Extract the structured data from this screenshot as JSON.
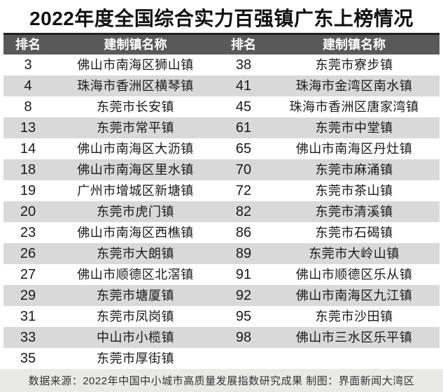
{
  "title": "2022年度全国综合实力百强镇广东上榜情况",
  "table": {
    "headers": [
      "排名",
      "建制镇名称",
      "排名",
      "建制镇名称"
    ],
    "left_rows": [
      {
        "rank": "3",
        "town": "佛山市南海区狮山镇"
      },
      {
        "rank": "4",
        "town": "珠海市香洲区横琴镇"
      },
      {
        "rank": "8",
        "town": "东莞市长安镇"
      },
      {
        "rank": "13",
        "town": "东莞市常平镇"
      },
      {
        "rank": "14",
        "town": "佛山市南海区大沥镇"
      },
      {
        "rank": "18",
        "town": "佛山市南海区里水镇"
      },
      {
        "rank": "19",
        "town": "广州市增城区新塘镇"
      },
      {
        "rank": "20",
        "town": "东莞市虎门镇"
      },
      {
        "rank": "23",
        "town": "佛山市南海区西樵镇"
      },
      {
        "rank": "26",
        "town": "东莞市大朗镇"
      },
      {
        "rank": "27",
        "town": "佛山市顺德区北滘镇"
      },
      {
        "rank": "29",
        "town": "东莞市塘厦镇"
      },
      {
        "rank": "31",
        "town": "东莞市凤岗镇"
      },
      {
        "rank": "33",
        "town": "中山市小榄镇"
      },
      {
        "rank": "35",
        "town": "东莞市厚街镇"
      }
    ],
    "right_rows": [
      {
        "rank": "38",
        "town": "东莞市寮步镇"
      },
      {
        "rank": "41",
        "town": "珠海市金湾区南水镇"
      },
      {
        "rank": "45",
        "town": "珠海市香洲区唐家湾镇"
      },
      {
        "rank": "61",
        "town": "东莞市中堂镇"
      },
      {
        "rank": "65",
        "town": "佛山市南海区丹灶镇"
      },
      {
        "rank": "70",
        "town": "东莞市麻涌镇"
      },
      {
        "rank": "72",
        "town": "东莞市茶山镇"
      },
      {
        "rank": "82",
        "town": "东莞市清溪镇"
      },
      {
        "rank": "86",
        "town": "东莞市石碣镇"
      },
      {
        "rank": "89",
        "town": "东莞市大岭山镇"
      },
      {
        "rank": "91",
        "town": "佛山市顺德区乐从镇"
      },
      {
        "rank": "92",
        "town": "佛山市南海区九江镇"
      },
      {
        "rank": "95",
        "town": "东莞市沙田镇"
      },
      {
        "rank": "98",
        "town": "佛山市三水区乐平镇"
      },
      {
        "rank": "",
        "town": ""
      }
    ]
  },
  "footer": {
    "text": "数据来源：2022年中国中小城市高质量发展指数研究成果 制图：界面新闻大湾区"
  },
  "colors": {
    "header_bg": "#595959",
    "stripe_bg": "#d9d9d9",
    "top_rule": "#1f1f1f",
    "footer_bg": "#e9e9e8",
    "title_text": "#111111",
    "body_text": "#1a1a1a"
  },
  "chart_data": {
    "type": "table",
    "title": "2022年度全国综合实力百强镇广东上榜情况",
    "columns": [
      "排名",
      "建制镇名称"
    ],
    "rows": [
      [
        3,
        "佛山市南海区狮山镇"
      ],
      [
        4,
        "珠海市香洲区横琴镇"
      ],
      [
        8,
        "东莞市长安镇"
      ],
      [
        13,
        "东莞市常平镇"
      ],
      [
        14,
        "佛山市南海区大沥镇"
      ],
      [
        18,
        "佛山市南海区里水镇"
      ],
      [
        19,
        "广州市增城区新塘镇"
      ],
      [
        20,
        "东莞市虎门镇"
      ],
      [
        23,
        "佛山市南海区西樵镇"
      ],
      [
        26,
        "东莞市大朗镇"
      ],
      [
        27,
        "佛山市顺德区北滘镇"
      ],
      [
        29,
        "东莞市塘厦镇"
      ],
      [
        31,
        "东莞市凤岗镇"
      ],
      [
        33,
        "中山市小榄镇"
      ],
      [
        35,
        "东莞市厚街镇"
      ],
      [
        38,
        "东莞市寮步镇"
      ],
      [
        41,
        "珠海市金湾区南水镇"
      ],
      [
        45,
        "珠海市香洲区唐家湾镇"
      ],
      [
        61,
        "东莞市中堂镇"
      ],
      [
        65,
        "佛山市南海区丹灶镇"
      ],
      [
        70,
        "东莞市麻涌镇"
      ],
      [
        72,
        "东莞市茶山镇"
      ],
      [
        82,
        "东莞市清溪镇"
      ],
      [
        86,
        "东莞市石碣镇"
      ],
      [
        89,
        "东莞市大岭山镇"
      ],
      [
        91,
        "佛山市顺德区乐从镇"
      ],
      [
        92,
        "佛山市南海区九江镇"
      ],
      [
        95,
        "东莞市沙田镇"
      ],
      [
        98,
        "佛山市三水区乐平镇"
      ]
    ],
    "source": "数据来源：2022年中国中小城市高质量发展指数研究成果 制图：界面新闻大湾区",
    "layout": "two-column table, zebra striping, dark header row"
  }
}
